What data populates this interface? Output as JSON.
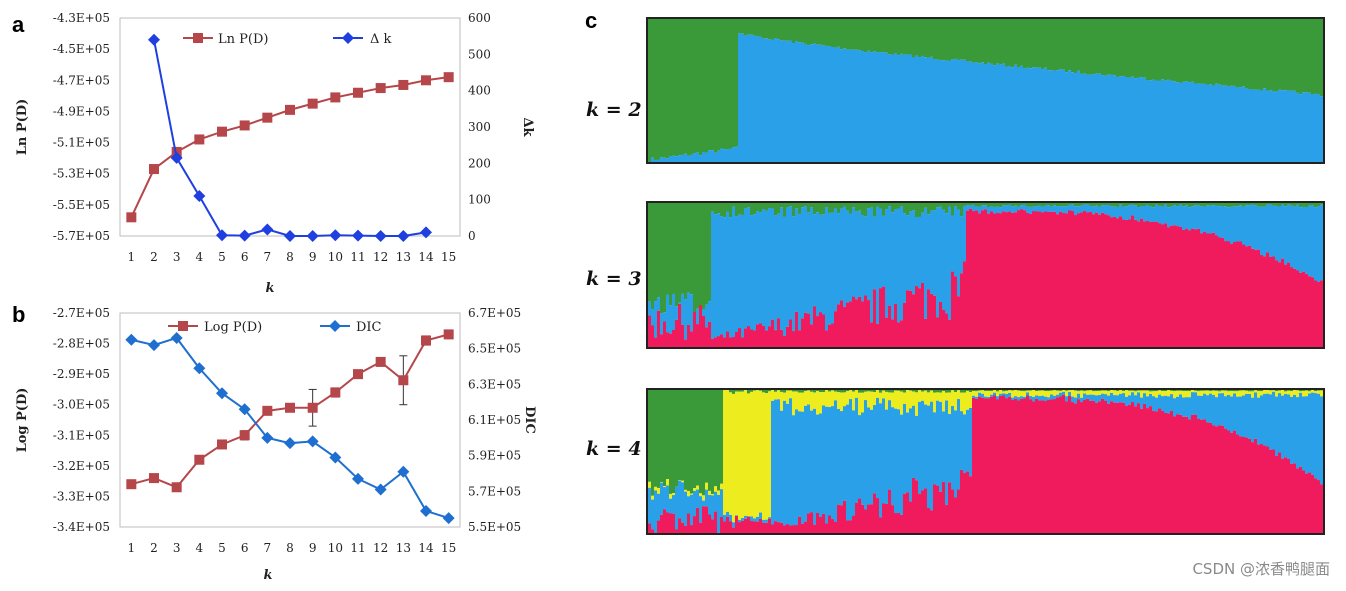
{
  "panels": {
    "a": "a",
    "b": "b",
    "c": "c"
  },
  "watermark": "CSDN @浓香鸭腿面",
  "colors": {
    "red": "#b5474b",
    "blue": "#1f3fe0",
    "green": "#3a9a3a",
    "sky": "#2aa0e8",
    "pink": "#ef1b5c",
    "yellow": "#ecec1e"
  },
  "chart_data": [
    {
      "id": "a",
      "type": "line",
      "x": [
        1,
        2,
        3,
        4,
        5,
        6,
        7,
        8,
        9,
        10,
        11,
        12,
        13,
        14,
        15
      ],
      "xlabel": "k",
      "xticks": [
        "1",
        "2",
        "3",
        "4",
        "5",
        "6",
        "7",
        "8",
        "9",
        "10",
        "11",
        "12",
        "13",
        "14",
        "15"
      ],
      "ylabel_left": "Ln P(D)",
      "ylabel_right": "Δk",
      "ylim_left": [
        -570000,
        -430000
      ],
      "ylim_right": [
        0,
        600
      ],
      "yticks_left": [
        "-4.3E+05",
        "-4.5E+05",
        "-4.7E+05",
        "-4.9E+05",
        "-5.1E+05",
        "-5.3E+05",
        "-5.5E+05",
        "-5.7E+05"
      ],
      "yticks_right": [
        "600",
        "500",
        "400",
        "300",
        "200",
        "100",
        "0"
      ],
      "legend_position": "top",
      "series": [
        {
          "name": "Ln P(D)",
          "axis": "left",
          "color": "#b5474b",
          "marker": "square",
          "x": [
            1,
            2,
            3,
            4,
            5,
            6,
            7,
            8,
            9,
            10,
            11,
            12,
            13,
            14,
            15
          ],
          "values": [
            -558000,
            -527000,
            -516000,
            -508000,
            -503000,
            -499000,
            -494000,
            -489000,
            -485000,
            -481000,
            -478000,
            -475000,
            -473000,
            -470000,
            -468000
          ]
        },
        {
          "name": "Δ k",
          "axis": "right",
          "color": "#1f3fe0",
          "marker": "diamond",
          "x": [
            2,
            3,
            4,
            5,
            6,
            7,
            8,
            9,
            10,
            11,
            12,
            13,
            14
          ],
          "values": [
            540,
            215,
            110,
            2,
            1,
            18,
            0,
            0,
            2,
            1,
            0,
            0,
            10
          ]
        }
      ]
    },
    {
      "id": "b",
      "type": "line",
      "x": [
        1,
        2,
        3,
        4,
        5,
        6,
        7,
        8,
        9,
        10,
        11,
        12,
        13,
        14,
        15
      ],
      "xlabel": "k",
      "xticks": [
        "1",
        "2",
        "3",
        "4",
        "5",
        "6",
        "7",
        "8",
        "9",
        "10",
        "11",
        "12",
        "13",
        "14",
        "15"
      ],
      "ylabel_left": "Log P(D)",
      "ylabel_right": "DIC",
      "ylim_left": [
        -340000,
        -270000
      ],
      "ylim_right": [
        550000,
        670000
      ],
      "yticks_left": [
        "-2.7E+05",
        "-2.8E+05",
        "-2.9E+05",
        "-3.0E+05",
        "-3.1E+05",
        "-3.2E+05",
        "-3.3E+05",
        "-3.4E+05"
      ],
      "yticks_right": [
        "6.7E+05",
        "6.5E+05",
        "6.3E+05",
        "6.1E+05",
        "5.9E+05",
        "5.7E+05",
        "5.5E+05"
      ],
      "legend_position": "top",
      "series": [
        {
          "name": "Log P(D)",
          "axis": "left",
          "color": "#b5474b",
          "marker": "square",
          "x": [
            1,
            2,
            3,
            4,
            5,
            6,
            7,
            8,
            9,
            10,
            11,
            12,
            13,
            14,
            15
          ],
          "values": [
            -326000,
            -324000,
            -327000,
            -318000,
            -313000,
            -310000,
            -302000,
            -301000,
            -301000,
            -296000,
            -290000,
            -286000,
            -292000,
            -279000,
            -277000
          ],
          "error": [
            0,
            0,
            0,
            0,
            0,
            1500,
            0,
            0,
            6000,
            1500,
            0,
            0,
            8000,
            1500,
            0
          ]
        },
        {
          "name": "DIC",
          "axis": "right",
          "color": "#1f6fd0",
          "marker": "diamond",
          "x": [
            1,
            2,
            3,
            4,
            5,
            6,
            7,
            8,
            9,
            10,
            11,
            12,
            13,
            14,
            15
          ],
          "values": [
            655000,
            652000,
            656000,
            639000,
            625000,
            616000,
            600000,
            597000,
            598000,
            589000,
            577000,
            571000,
            581000,
            559000,
            555000
          ]
        }
      ]
    },
    {
      "id": "c",
      "type": "bar",
      "subtype": "stacked-membership",
      "panels": [
        {
          "label": "k = 2",
          "clusters": [
            "green",
            "sky"
          ]
        },
        {
          "label": "k = 3",
          "clusters": [
            "green",
            "sky",
            "pink"
          ]
        },
        {
          "label": "k = 4",
          "clusters": [
            "green",
            "yellow",
            "sky",
            "pink"
          ]
        }
      ]
    }
  ]
}
